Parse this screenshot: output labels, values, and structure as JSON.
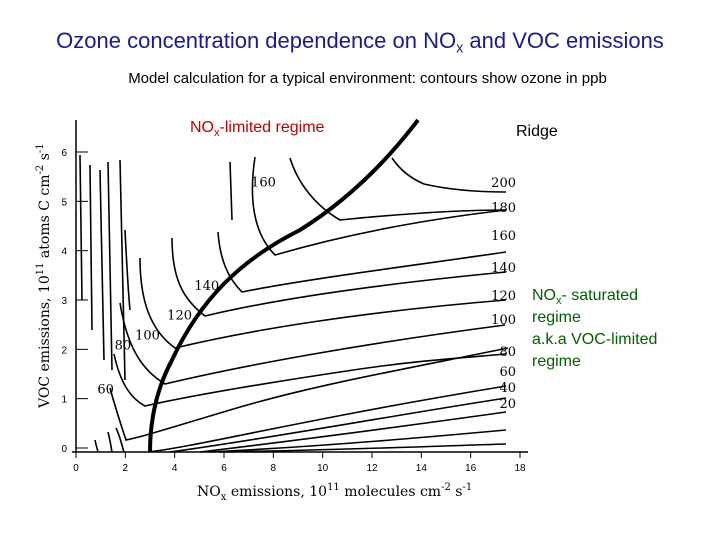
{
  "chart_data": {
    "type": "contour",
    "title": "Ozone concentration dependence on NOx and VOC emissions",
    "title_parts": {
      "pre": "Ozone concentration dependence on NO",
      "sub": "x",
      "post": " and VOC emissions"
    },
    "subtitle": "Model calculation for a typical environment: contours show ozone in ppb",
    "xlabel": {
      "pre": "NO",
      "sub": "x",
      "mid": " emissions, 10",
      "sup1": "11",
      "post": " molecules cm",
      "sup2": "-2",
      "post2": " s",
      "sup3": "-1"
    },
    "ylabel": {
      "pre": "VOC  emissions, 10",
      "sup1": "11",
      "mid": " atoms C cm",
      "sup2": "-2",
      "post": " s",
      "sup3": "-1"
    },
    "xlim": [
      0,
      18
    ],
    "ylim": [
      0,
      6
    ],
    "x_ticks": [
      0,
      2,
      4,
      6,
      8,
      10,
      12,
      14,
      16,
      18
    ],
    "y_ticks": [
      0,
      1,
      2,
      3,
      4,
      5,
      6
    ],
    "contour_levels": [
      20,
      40,
      60,
      80,
      100,
      120,
      140,
      160,
      180,
      200
    ],
    "contour_labels_left": [
      {
        "text": "60",
        "x": 1.2,
        "y": 1.1
      },
      {
        "text": "80",
        "x": 1.9,
        "y": 2.0
      },
      {
        "text": "100",
        "x": 2.9,
        "y": 2.2
      },
      {
        "text": "120",
        "x": 4.2,
        "y": 2.6
      },
      {
        "text": "140",
        "x": 5.3,
        "y": 3.2
      },
      {
        "text": "160",
        "x": 7.6,
        "y": 5.3
      }
    ],
    "contour_labels_right": [
      "200",
      "180",
      "160",
      "140",
      "120",
      "100",
      "80",
      "60",
      "40",
      "20"
    ],
    "annotations": {
      "nox_limited": {
        "pre": "NO",
        "sub": "x",
        "post": "-limited regime"
      },
      "ridge": "Ridge",
      "nox_saturated": {
        "line1_pre": "NO",
        "line1_sub": "x",
        "line1_post": "- saturated",
        "line2": "regime",
        "line3": "a.k.a VOC-limited",
        "line4": "regime"
      }
    },
    "colors": {
      "title": "#1a1a8c",
      "nox_limited": "#c00000",
      "saturated": "#006000"
    }
  }
}
